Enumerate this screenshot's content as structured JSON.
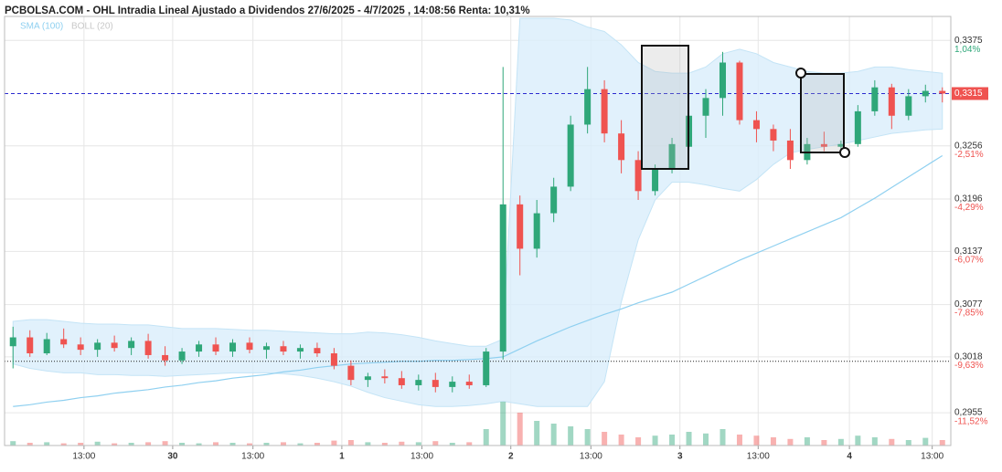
{
  "chart_data": {
    "type": "candlestick",
    "title": "PCBOLSA.COM - OHL Intradia Lineal Ajustado a Dividendos 27/6/2025 - 4/7/2025 , 14:08:56 Renta: 10,31%",
    "legend": [
      "SMA (100)",
      "BOLL (20)"
    ],
    "up_color": "#2fa779",
    "down_color": "#ef5350",
    "sma_color": "#8fd0f0",
    "band_color": "#d9eefb",
    "xlim": [
      -0.5,
      55.5
    ],
    "xticks": [
      {
        "value": 4.2,
        "label": "13:00"
      },
      {
        "value": 9.45,
        "label": "30"
      },
      {
        "value": 14.2,
        "label": "13:00"
      },
      {
        "value": 19.46,
        "label": "1"
      },
      {
        "value": 24.2,
        "label": "13:00"
      },
      {
        "value": 29.46,
        "label": "2"
      },
      {
        "value": 34.2,
        "label": "13:00"
      },
      {
        "value": 39.47,
        "label": "3"
      },
      {
        "value": 44.1,
        "label": "13:00"
      },
      {
        "value": 49.5,
        "label": "4"
      },
      {
        "value": 54.4,
        "label": "13:00"
      }
    ],
    "ylim": [
      0.2918,
      0.3402
    ],
    "yticks": [
      {
        "value": 0.3375,
        "label": "0,3375"
      },
      {
        "value": 0.3256,
        "label": "0,3256"
      },
      {
        "value": 0.3196,
        "label": "0,3196"
      },
      {
        "value": 0.3137,
        "label": "0,3137"
      },
      {
        "value": 0.3077,
        "label": "0,3077"
      },
      {
        "value": 0.3018,
        "label": "0,3018"
      },
      {
        "value": 0.2955,
        "label": "0,2955"
      }
    ],
    "y2lim": [
      1.85,
      -12.64
    ],
    "y2ticks": [
      {
        "value": 1.04,
        "label": "1,04%"
      },
      {
        "value": -2.51,
        "label": "-2,51%"
      },
      {
        "value": -4.29,
        "label": "-4,29%"
      },
      {
        "value": -6.07,
        "label": "-6,07%"
      },
      {
        "value": -7.85,
        "label": "-7,85%"
      },
      {
        "value": -9.63,
        "label": "-9,63%"
      },
      {
        "value": -11.52,
        "label": "-11,52%"
      }
    ],
    "last_price": {
      "value": 0.3315,
      "label": "0,3315"
    },
    "reference_line": 0.3013,
    "ohlc": [
      [
        0.303,
        0.3052,
        0.3005,
        0.304
      ],
      [
        0.304,
        0.3048,
        0.3018,
        0.3022
      ],
      [
        0.3022,
        0.3045,
        0.302,
        0.3038
      ],
      [
        0.3038,
        0.305,
        0.3028,
        0.3032
      ],
      [
        0.3032,
        0.304,
        0.302,
        0.3026
      ],
      [
        0.3026,
        0.3038,
        0.3018,
        0.3034
      ],
      [
        0.3034,
        0.3042,
        0.3024,
        0.3028
      ],
      [
        0.3028,
        0.304,
        0.302,
        0.3036
      ],
      [
        0.3036,
        0.3044,
        0.3016,
        0.302
      ],
      [
        0.302,
        0.303,
        0.3008,
        0.3014
      ],
      [
        0.3014,
        0.3028,
        0.301,
        0.3024
      ],
      [
        0.3024,
        0.3036,
        0.3018,
        0.3032
      ],
      [
        0.3032,
        0.304,
        0.302,
        0.3024
      ],
      [
        0.3024,
        0.3038,
        0.3018,
        0.3034
      ],
      [
        0.3034,
        0.304,
        0.3022,
        0.3026
      ],
      [
        0.3026,
        0.3034,
        0.3016,
        0.303
      ],
      [
        0.303,
        0.3036,
        0.302,
        0.3024
      ],
      [
        0.3024,
        0.3032,
        0.3016,
        0.3028
      ],
      [
        0.3028,
        0.3034,
        0.3018,
        0.3022
      ],
      [
        0.3022,
        0.3028,
        0.3004,
        0.3008
      ],
      [
        0.3008,
        0.3014,
        0.2986,
        0.2992
      ],
      [
        0.2992,
        0.3,
        0.2984,
        0.2996
      ],
      [
        0.2996,
        0.3004,
        0.2988,
        0.2994
      ],
      [
        0.2994,
        0.3002,
        0.2982,
        0.2986
      ],
      [
        0.2986,
        0.2998,
        0.298,
        0.2992
      ],
      [
        0.2992,
        0.3,
        0.2978,
        0.2984
      ],
      [
        0.2984,
        0.2996,
        0.2978,
        0.299
      ],
      [
        0.299,
        0.2998,
        0.2982,
        0.2986
      ],
      [
        0.2986,
        0.3028,
        0.2984,
        0.3024
      ],
      [
        0.3024,
        0.3345,
        0.3015,
        0.319
      ],
      [
        0.319,
        0.32,
        0.311,
        0.314
      ],
      [
        0.314,
        0.3195,
        0.313,
        0.318
      ],
      [
        0.318,
        0.322,
        0.317,
        0.321
      ],
      [
        0.321,
        0.329,
        0.3205,
        0.328
      ],
      [
        0.328,
        0.3345,
        0.327,
        0.332
      ],
      [
        0.332,
        0.333,
        0.326,
        0.327
      ],
      [
        0.327,
        0.3285,
        0.3225,
        0.324
      ],
      [
        0.324,
        0.325,
        0.3195,
        0.3205
      ],
      [
        0.3205,
        0.3235,
        0.32,
        0.323
      ],
      [
        0.323,
        0.3265,
        0.3225,
        0.3258
      ],
      [
        0.3255,
        0.33,
        0.325,
        0.329
      ],
      [
        0.329,
        0.332,
        0.3265,
        0.331
      ],
      [
        0.331,
        0.3362,
        0.329,
        0.335
      ],
      [
        0.335,
        0.3352,
        0.328,
        0.3285
      ],
      [
        0.3285,
        0.3295,
        0.326,
        0.3275
      ],
      [
        0.3275,
        0.328,
        0.325,
        0.3262
      ],
      [
        0.3262,
        0.3275,
        0.323,
        0.324
      ],
      [
        0.324,
        0.3265,
        0.3235,
        0.3258
      ],
      [
        0.3258,
        0.3272,
        0.325,
        0.3255
      ],
      [
        0.3255,
        0.3262,
        0.3245,
        0.3258
      ],
      [
        0.3258,
        0.3302,
        0.3255,
        0.3295
      ],
      [
        0.3295,
        0.333,
        0.329,
        0.3322
      ],
      [
        0.3322,
        0.3326,
        0.3275,
        0.329
      ],
      [
        0.329,
        0.332,
        0.3285,
        0.3312
      ],
      [
        0.3312,
        0.3325,
        0.3305,
        0.3318
      ],
      [
        0.3318,
        0.3322,
        0.3305,
        0.3315
      ]
    ],
    "sma": [
      0.2962,
      0.2964,
      0.2967,
      0.2969,
      0.2972,
      0.2974,
      0.2977,
      0.2979,
      0.2981,
      0.2984,
      0.2986,
      0.2989,
      0.2991,
      0.2994,
      0.2996,
      0.2998,
      0.3001,
      0.3003,
      0.3006,
      0.3008,
      0.301,
      0.3011,
      0.3012,
      0.3013,
      0.3013,
      0.3014,
      0.3014,
      0.3015,
      0.3016,
      0.3018,
      0.3027,
      0.3036,
      0.3044,
      0.3052,
      0.3059,
      0.3066,
      0.3072,
      0.3079,
      0.3085,
      0.3091,
      0.31,
      0.3109,
      0.3118,
      0.3127,
      0.3135,
      0.3143,
      0.3151,
      0.3159,
      0.3167,
      0.3175,
      0.3186,
      0.3197,
      0.3209,
      0.3221,
      0.3233,
      0.3245
    ],
    "boll_upper": [
      0.3058,
      0.306,
      0.306,
      0.3058,
      0.3056,
      0.3055,
      0.3055,
      0.3054,
      0.3054,
      0.3052,
      0.305,
      0.305,
      0.305,
      0.3049,
      0.3048,
      0.3048,
      0.3047,
      0.3046,
      0.3045,
      0.3044,
      0.3044,
      0.3046,
      0.3045,
      0.3043,
      0.304,
      0.3036,
      0.3033,
      0.303,
      0.303,
      0.3038,
      0.34,
      0.34,
      0.34,
      0.3398,
      0.339,
      0.3385,
      0.337,
      0.335,
      0.334,
      0.3338,
      0.3338,
      0.3345,
      0.336,
      0.3365,
      0.336,
      0.335,
      0.3345,
      0.334,
      0.3338,
      0.3338,
      0.334,
      0.3345,
      0.3345,
      0.3342,
      0.334,
      0.3338
    ],
    "boll_lower": [
      0.301,
      0.3005,
      0.3002,
      0.3,
      0.3,
      0.2998,
      0.2998,
      0.2997,
      0.2997,
      0.2996,
      0.2997,
      0.2998,
      0.2999,
      0.3,
      0.3,
      0.3,
      0.2999,
      0.2997,
      0.2994,
      0.299,
      0.2985,
      0.2978,
      0.2972,
      0.2968,
      0.2964,
      0.2962,
      0.2962,
      0.2963,
      0.2965,
      0.2968,
      0.2965,
      0.2962,
      0.2962,
      0.2962,
      0.2962,
      0.299,
      0.308,
      0.315,
      0.3195,
      0.3215,
      0.3215,
      0.3212,
      0.3208,
      0.3205,
      0.3218,
      0.3235,
      0.3248,
      0.3252,
      0.3255,
      0.3258,
      0.3262,
      0.3266,
      0.327,
      0.3272,
      0.3274,
      0.3275
    ],
    "vlim": [
      0,
      100
    ],
    "volume": [
      8,
      5,
      6,
      4,
      5,
      7,
      4,
      5,
      6,
      8,
      5,
      4,
      6,
      5,
      4,
      5,
      6,
      4,
      5,
      9,
      10,
      6,
      5,
      7,
      6,
      8,
      5,
      6,
      30,
      80,
      60,
      45,
      40,
      35,
      30,
      25,
      20,
      15,
      18,
      20,
      25,
      22,
      30,
      20,
      18,
      15,
      12,
      15,
      10,
      12,
      18,
      15,
      12,
      10,
      14,
      10
    ]
  }
}
